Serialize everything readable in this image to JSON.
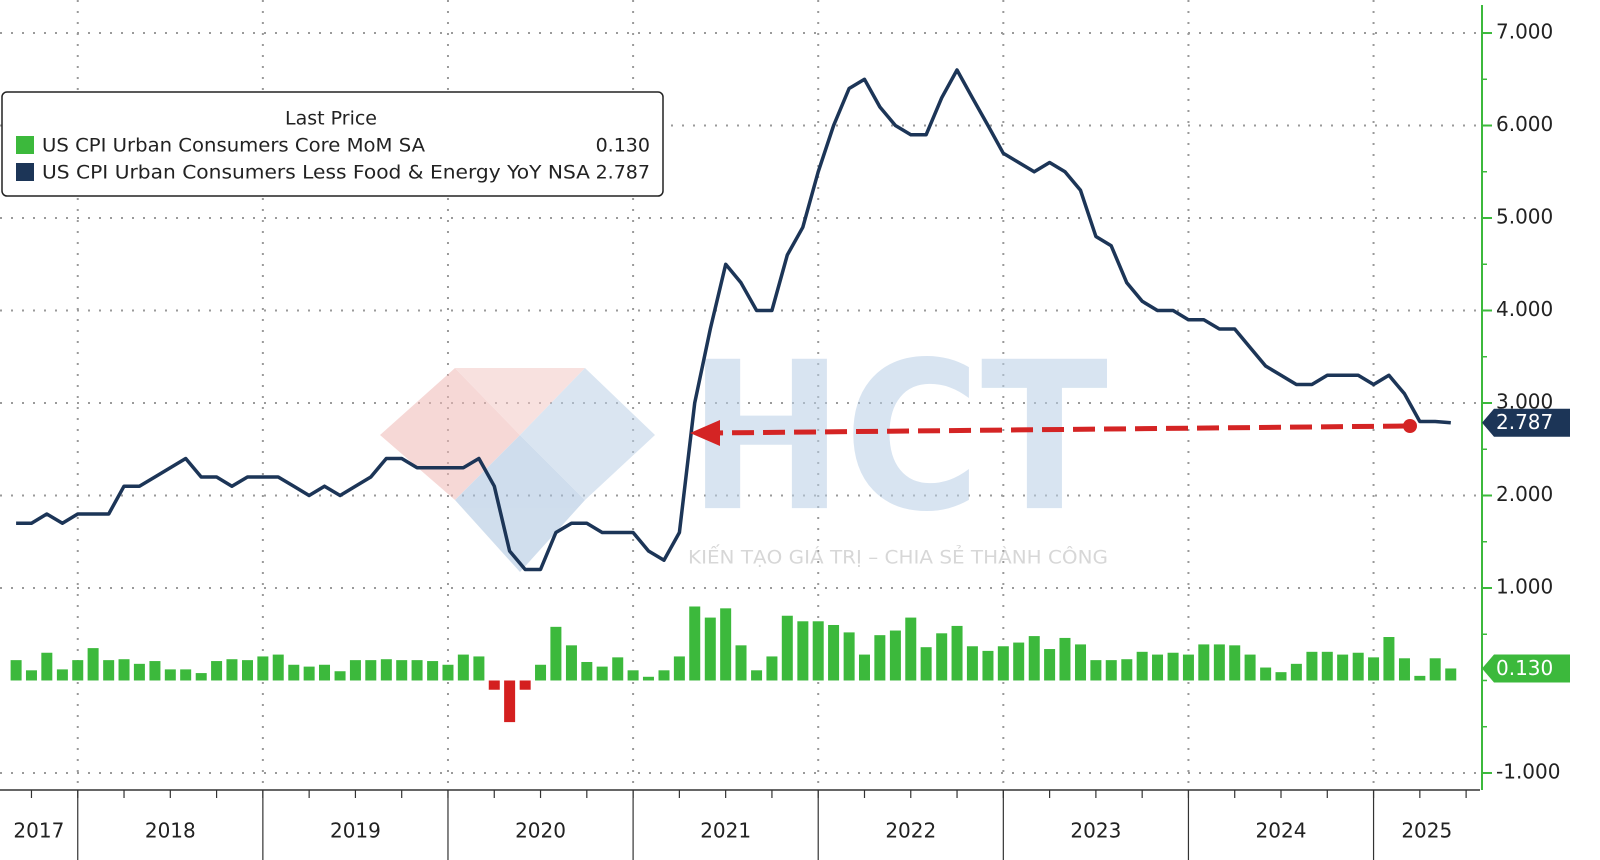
{
  "chart_data": {
    "type": "combo",
    "legend_title": "Last Price",
    "watermark": {
      "text": "HCT",
      "tagline": "KIẾN TẠO GIÁ TRỊ – CHIA SẺ THÀNH CÔNG"
    },
    "x": [
      2017.667,
      2017.75,
      2017.833,
      2017.917,
      2018,
      2018.083,
      2018.167,
      2018.25,
      2018.333,
      2018.417,
      2018.5,
      2018.583,
      2018.667,
      2018.75,
      2018.833,
      2018.917,
      2019,
      2019.083,
      2019.167,
      2019.25,
      2019.333,
      2019.417,
      2019.5,
      2019.583,
      2019.667,
      2019.75,
      2019.833,
      2019.917,
      2020,
      2020.083,
      2020.167,
      2020.25,
      2020.333,
      2020.417,
      2020.5,
      2020.583,
      2020.667,
      2020.75,
      2020.833,
      2020.917,
      2021,
      2021.083,
      2021.167,
      2021.25,
      2021.333,
      2021.417,
      2021.5,
      2021.583,
      2021.667,
      2021.75,
      2021.833,
      2021.917,
      2022,
      2022.083,
      2022.167,
      2022.25,
      2022.333,
      2022.417,
      2022.5,
      2022.583,
      2022.667,
      2022.75,
      2022.833,
      2022.917,
      2023,
      2023.083,
      2023.167,
      2023.25,
      2023.333,
      2023.417,
      2023.5,
      2023.583,
      2023.667,
      2023.75,
      2023.833,
      2023.917,
      2024,
      2024.083,
      2024.167,
      2024.25,
      2024.333,
      2024.417,
      2024.5,
      2024.583,
      2024.667,
      2024.75,
      2024.833,
      2024.917,
      2025,
      2025.083,
      2025.167,
      2025.25,
      2025.333,
      2025.417
    ],
    "series": [
      {
        "name": "US CPI Urban Consumers Core MoM SA",
        "type": "bar",
        "color": "#3cb93c",
        "negative_color": "#d41f1f",
        "last_price": {
          "value": 0.13,
          "label": "0.130"
        },
        "values": [
          0.22,
          0.11,
          0.3,
          0.12,
          0.22,
          0.35,
          0.22,
          0.23,
          0.18,
          0.21,
          0.12,
          0.12,
          0.08,
          0.21,
          0.23,
          0.22,
          0.26,
          0.28,
          0.17,
          0.15,
          0.17,
          0.1,
          0.22,
          0.22,
          0.23,
          0.22,
          0.22,
          0.21,
          0.17,
          0.28,
          0.26,
          -0.1,
          -0.45,
          -0.1,
          0.17,
          0.58,
          0.38,
          0.2,
          0.15,
          0.25,
          0.11,
          0.04,
          0.11,
          0.26,
          0.8,
          0.68,
          0.78,
          0.38,
          0.11,
          0.26,
          0.7,
          0.64,
          0.64,
          0.6,
          0.52,
          0.28,
          0.49,
          0.54,
          0.68,
          0.36,
          0.51,
          0.59,
          0.37,
          0.32,
          0.37,
          0.41,
          0.48,
          0.34,
          0.46,
          0.39,
          0.22,
          0.22,
          0.23,
          0.31,
          0.28,
          0.3,
          0.28,
          0.39,
          0.39,
          0.38,
          0.28,
          0.14,
          0.09,
          0.18,
          0.31,
          0.31,
          0.28,
          0.3,
          0.25,
          0.47,
          0.24,
          0.05,
          0.24,
          0.13
        ]
      },
      {
        "name": "US CPI Urban Consumers Less Food & Energy YoY NSA",
        "type": "line",
        "color": "#1c3557",
        "last_price": {
          "value": 2.787,
          "label": "2.787"
        },
        "values": [
          1.7,
          1.7,
          1.8,
          1.7,
          1.8,
          1.8,
          1.8,
          2.1,
          2.1,
          2.2,
          2.3,
          2.4,
          2.2,
          2.2,
          2.1,
          2.2,
          2.2,
          2.2,
          2.1,
          2.0,
          2.1,
          2.0,
          2.1,
          2.2,
          2.4,
          2.4,
          2.3,
          2.3,
          2.3,
          2.3,
          2.4,
          2.1,
          1.4,
          1.2,
          1.2,
          1.6,
          1.7,
          1.7,
          1.6,
          1.6,
          1.6,
          1.4,
          1.3,
          1.6,
          3.0,
          3.8,
          4.5,
          4.3,
          4.0,
          4.0,
          4.6,
          4.9,
          5.5,
          6.0,
          6.4,
          6.5,
          6.2,
          6.0,
          5.9,
          5.9,
          6.3,
          6.6,
          6.3,
          6.0,
          5.7,
          5.6,
          5.5,
          5.6,
          5.5,
          5.3,
          4.8,
          4.7,
          4.3,
          4.1,
          4.0,
          4.0,
          3.9,
          3.9,
          3.8,
          3.8,
          3.6,
          3.4,
          3.3,
          3.2,
          3.2,
          3.3,
          3.3,
          3.3,
          3.2,
          3.3,
          3.1,
          2.8,
          2.8,
          2.787
        ]
      }
    ],
    "xlim": [
      2017.58,
      2025.575
    ],
    "xticks": [
      {
        "value": 2017,
        "label": "2017"
      },
      {
        "value": 2018,
        "label": "2018"
      },
      {
        "value": 2019,
        "label": "2019"
      },
      {
        "value": 2020,
        "label": "2020"
      },
      {
        "value": 2021,
        "label": "2021"
      },
      {
        "value": 2022,
        "label": "2022"
      },
      {
        "value": 2023,
        "label": "2023"
      },
      {
        "value": 2024,
        "label": "2024"
      },
      {
        "value": 2025,
        "label": "2025"
      }
    ],
    "ylim": [
      -1.184,
      7.357
    ],
    "yticks": [
      {
        "value": -1,
        "label": "-1.000"
      },
      {
        "value": 1,
        "label": "1.000"
      },
      {
        "value": 2,
        "label": "2.000"
      },
      {
        "value": 3,
        "label": "3.000"
      },
      {
        "value": 4,
        "label": "4.000"
      },
      {
        "value": 5,
        "label": "5.000"
      },
      {
        "value": 6,
        "label": "6.000"
      },
      {
        "value": 7,
        "label": "7.000"
      }
    ],
    "grid": true,
    "axis_side": "right",
    "axis_color": "#3cb93c"
  }
}
